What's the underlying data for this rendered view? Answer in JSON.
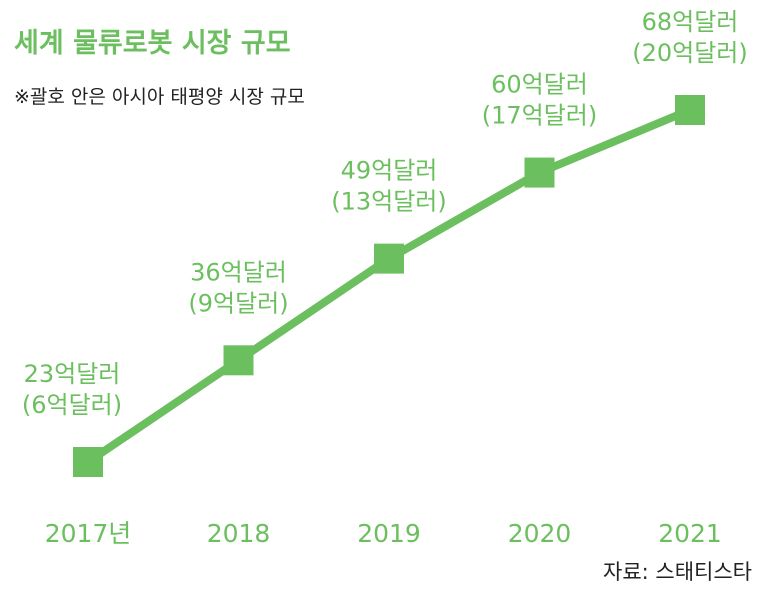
{
  "colors": {
    "accent": "#6cbf5f",
    "text": "#222222",
    "background": "#ffffff"
  },
  "chart_data": {
    "type": "line",
    "title": "세계 물류로봇 시장 규모",
    "subtitle": "※괄호 안은 아시아 태평양 시장 규모",
    "source": "자료: 스태티스타",
    "categories": [
      "2017년",
      "2018",
      "2019",
      "2020",
      "2021"
    ],
    "series": [
      {
        "values": [
          23,
          36,
          49,
          60,
          68
        ]
      },
      {
        "values": [
          6,
          9,
          13,
          17,
          20
        ]
      }
    ],
    "data_labels": [
      {
        "main": "23억달러",
        "sub": "(6억달러)"
      },
      {
        "main": "36억달러",
        "sub": "(9억달러)"
      },
      {
        "main": "49억달러",
        "sub": "(13억달러)"
      },
      {
        "main": "60억달러",
        "sub": "(17억달러)"
      },
      {
        "main": "68억달러",
        "sub": "(20억달러)"
      }
    ],
    "grid": false,
    "legend": "none"
  }
}
